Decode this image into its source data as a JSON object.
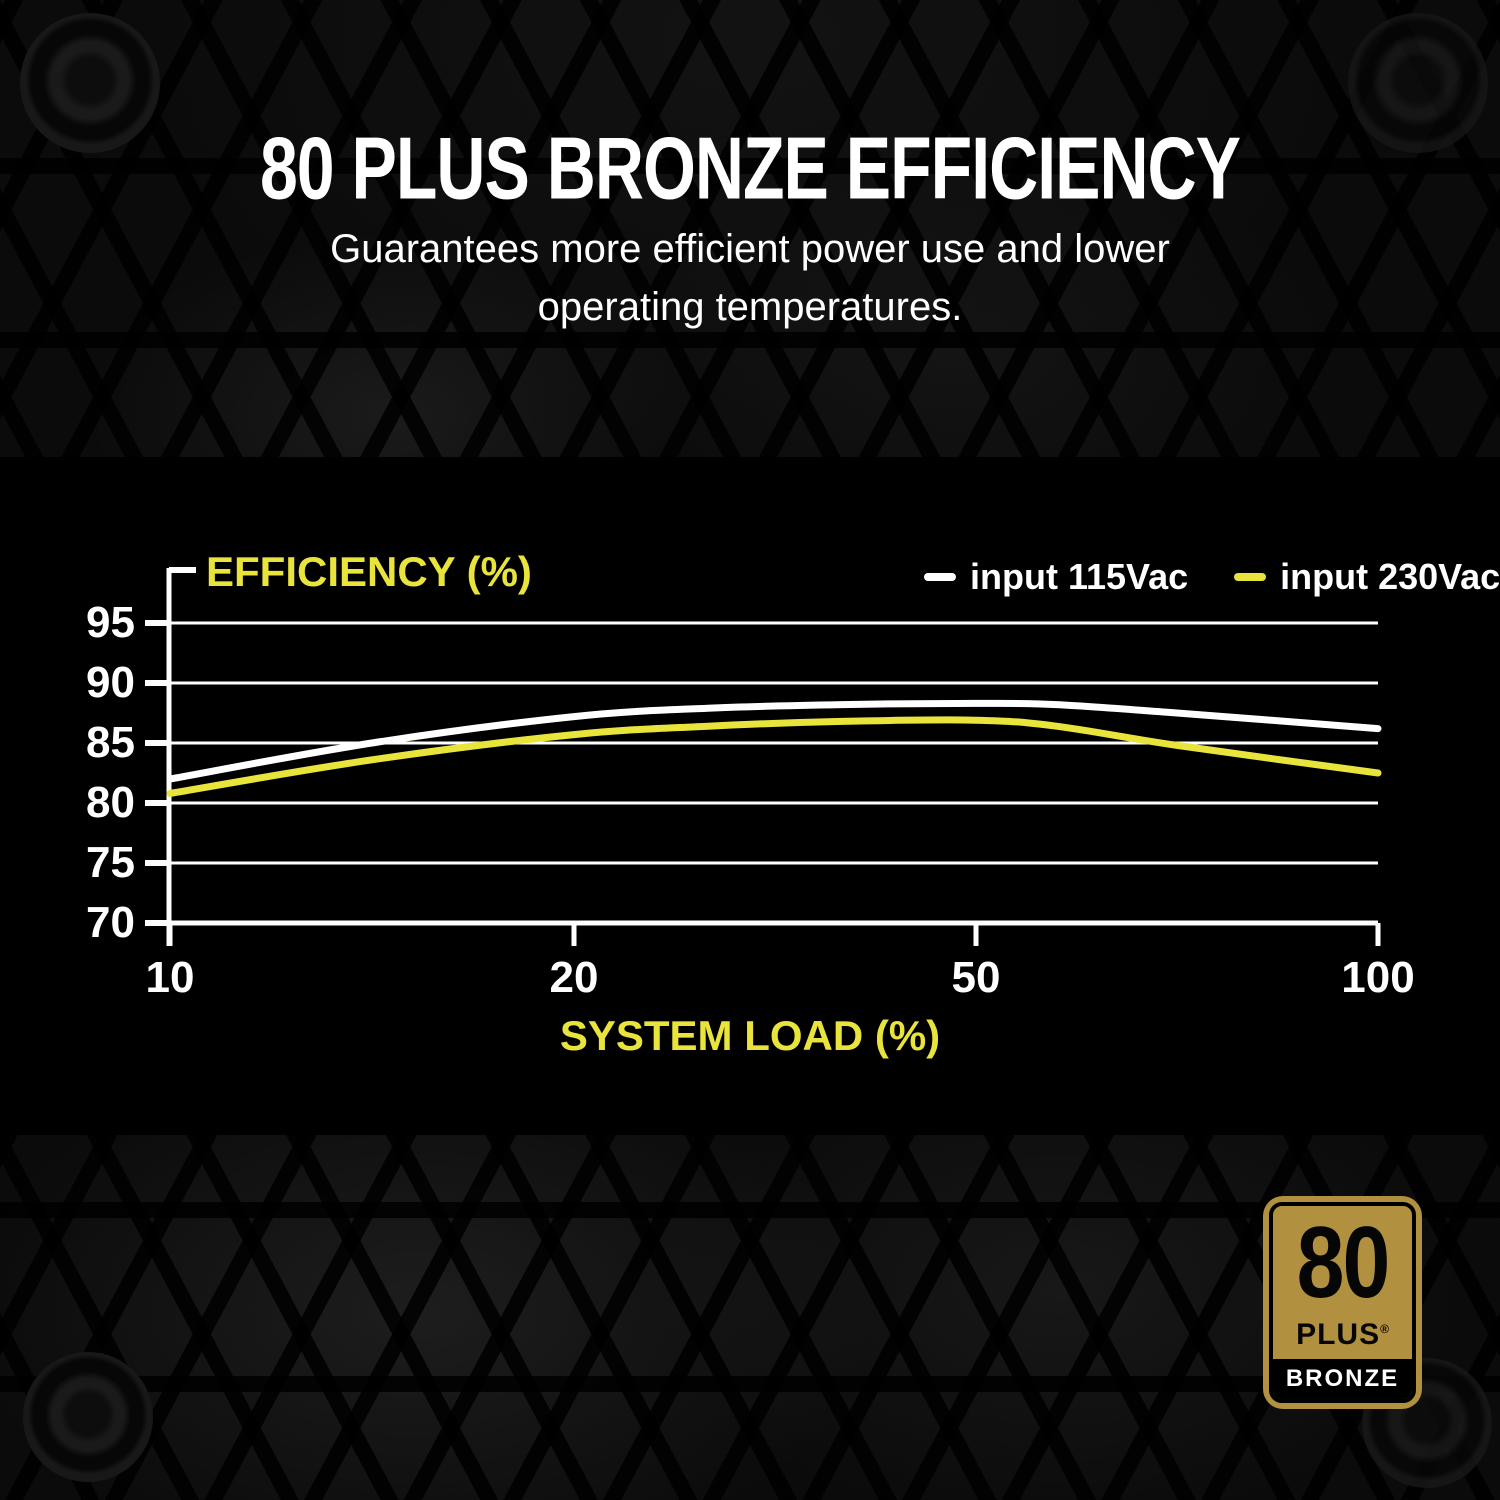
{
  "colors": {
    "accent_yellow": "#e9e43c",
    "badge_gold": "#b1903f",
    "curve_115vac": "#ffffff",
    "curve_230vac": "#e9e43c",
    "panel_background": "#000000"
  },
  "header": {
    "title": "80 PLUS BRONZE EFFICIENCY",
    "subtitle_lines": [
      "Guarantees more efficient power use and lower",
      "operating temperatures."
    ]
  },
  "chart_data": {
    "type": "line",
    "title": "EFFICIENCY (%)",
    "xlabel": "SYSTEM LOAD (%)",
    "ylabel": "EFFICIENCY (%)",
    "x_ticks": [
      10,
      20,
      50,
      100
    ],
    "x_scale": "labeled ticks 10/20/50/100 equally spaced",
    "y_ticks": [
      95,
      90,
      85,
      80,
      75,
      70
    ],
    "ylim": [
      70,
      99
    ],
    "grid": true,
    "legend_position": "top-right",
    "legend": [
      {
        "name": "input 115Vac",
        "color": "#ffffff"
      },
      {
        "name": "input 230Vac",
        "color": "#e9e43c"
      }
    ],
    "series": [
      {
        "name": "input 115Vac",
        "color": "#ffffff",
        "points": [
          [
            10,
            82.0
          ],
          [
            15,
            85.0
          ],
          [
            20,
            87.2
          ],
          [
            30,
            87.9
          ],
          [
            40,
            88.2
          ],
          [
            50,
            88.3
          ],
          [
            60,
            88.2
          ],
          [
            75,
            87.5
          ],
          [
            100,
            86.2
          ]
        ]
      },
      {
        "name": "input 230Vac",
        "color": "#e9e43c",
        "points": [
          [
            10,
            80.8
          ],
          [
            15,
            83.6
          ],
          [
            20,
            85.7
          ],
          [
            30,
            86.4
          ],
          [
            40,
            86.8
          ],
          [
            50,
            86.9
          ],
          [
            60,
            86.4
          ],
          [
            75,
            84.8
          ],
          [
            100,
            82.5
          ]
        ]
      }
    ]
  },
  "badge": {
    "number": "80",
    "plus": "PLUS",
    "registered": "®",
    "tier": "BRONZE"
  }
}
